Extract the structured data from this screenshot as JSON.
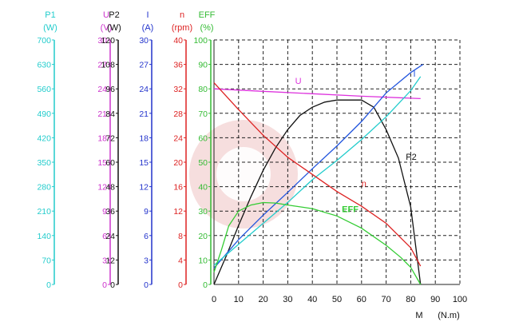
{
  "chart_data": {
    "type": "line",
    "title": "",
    "x_axis": {
      "label": "M",
      "unit": "(N.m)",
      "min": 0,
      "max": 100,
      "ticks": [
        "0",
        "10",
        "20",
        "30",
        "40",
        "50",
        "60",
        "70",
        "80",
        "90",
        "100"
      ]
    },
    "y_axes": [
      {
        "id": "P1",
        "name": "P1",
        "unit": "(W)",
        "color": "#22cccc",
        "ticks": [
          "0",
          "70",
          "140",
          "210",
          "280",
          "350",
          "420",
          "490",
          "560",
          "630",
          "700"
        ]
      },
      {
        "id": "U",
        "name": "U",
        "unit": "(V)",
        "color": "#cc33cc",
        "ticks": [
          "0",
          "3",
          "6",
          "9",
          "12",
          "15",
          "18",
          "21",
          "24",
          "27",
          "30"
        ]
      },
      {
        "id": "P2",
        "name": "P2",
        "unit": "(W)",
        "color": "#111111",
        "ticks": [
          "0",
          "12",
          "24",
          "36",
          "48",
          "60",
          "72",
          "84",
          "96",
          "108",
          "120"
        ]
      },
      {
        "id": "I",
        "name": "I",
        "unit": "(A)",
        "color": "#2233cc",
        "ticks": [
          "0",
          "3",
          "6",
          "9",
          "12",
          "15",
          "18",
          "21",
          "24",
          "27",
          "30"
        ]
      },
      {
        "id": "n",
        "name": "n",
        "unit": "(rpm)",
        "color": "#dd2222",
        "ticks": [
          "0",
          "4",
          "8",
          "12",
          "16",
          "20",
          "24",
          "28",
          "32",
          "36",
          "40"
        ]
      },
      {
        "id": "EFF",
        "name": "EFF",
        "unit": "(%)",
        "color": "#33bb33",
        "ticks": [
          "0",
          "10",
          "20",
          "30",
          "40",
          "50",
          "60",
          "70",
          "80",
          "90",
          "100"
        ]
      }
    ],
    "series": [
      {
        "name": "U",
        "axis": "U",
        "color": "#dd33dd",
        "label_at": [
          33,
          82
        ],
        "points": [
          [
            0,
            24
          ],
          [
            20,
            23.7
          ],
          [
            40,
            23.4
          ],
          [
            60,
            23.1
          ],
          [
            84,
            22.8
          ]
        ]
      },
      {
        "name": "P2",
        "axis": "P2",
        "color": "#111111",
        "label_at": [
          78,
          51
        ],
        "points": [
          [
            0,
            0
          ],
          [
            5,
            14
          ],
          [
            10,
            29
          ],
          [
            15,
            43
          ],
          [
            20,
            56
          ],
          [
            25,
            67
          ],
          [
            30,
            76
          ],
          [
            35,
            83
          ],
          [
            40,
            87
          ],
          [
            45,
            89.5
          ],
          [
            50,
            90.5
          ],
          [
            55,
            90.5
          ],
          [
            60,
            90.5
          ],
          [
            65,
            87
          ],
          [
            70,
            76
          ],
          [
            75,
            62
          ],
          [
            80,
            38
          ],
          [
            84,
            0
          ]
        ]
      },
      {
        "name": "I",
        "axis": "I",
        "color": "#2255dd",
        "label_at": [
          81,
          85
        ],
        "points": [
          [
            0,
            2
          ],
          [
            10,
            5.5
          ],
          [
            20,
            8.5
          ],
          [
            30,
            11.3
          ],
          [
            40,
            14.2
          ],
          [
            50,
            17
          ],
          [
            60,
            20
          ],
          [
            70,
            23.5
          ],
          [
            80,
            26
          ],
          [
            85,
            27
          ]
        ]
      },
      {
        "name": "P1",
        "axis": "P1",
        "color": "#22cccc",
        "points": [
          [
            0,
            55
          ],
          [
            10,
            115
          ],
          [
            20,
            175
          ],
          [
            30,
            235
          ],
          [
            40,
            300
          ],
          [
            50,
            355
          ],
          [
            60,
            415
          ],
          [
            70,
            480
          ],
          [
            80,
            555
          ],
          [
            84,
            595
          ]
        ]
      },
      {
        "name": "n",
        "axis": "n",
        "color": "#dd2222",
        "label_at": [
          60,
          40
        ],
        "points": [
          [
            0,
            33
          ],
          [
            10,
            28.6
          ],
          [
            20,
            24.4
          ],
          [
            30,
            20.8
          ],
          [
            40,
            18
          ],
          [
            50,
            15.2
          ],
          [
            60,
            12.8
          ],
          [
            70,
            10
          ],
          [
            80,
            6
          ],
          [
            84,
            3
          ]
        ]
      },
      {
        "name": "EFF",
        "axis": "EFF",
        "color": "#33cc33",
        "label_at": [
          52,
          29.5
        ],
        "points": [
          [
            0,
            5
          ],
          [
            3,
            14
          ],
          [
            6,
            24
          ],
          [
            10,
            30
          ],
          [
            15,
            32.5
          ],
          [
            20,
            33.5
          ],
          [
            25,
            33.3
          ],
          [
            30,
            32.5
          ],
          [
            40,
            31
          ],
          [
            50,
            28
          ],
          [
            60,
            23
          ],
          [
            70,
            16
          ],
          [
            76,
            11
          ],
          [
            80,
            7
          ],
          [
            84,
            0
          ]
        ]
      }
    ]
  }
}
